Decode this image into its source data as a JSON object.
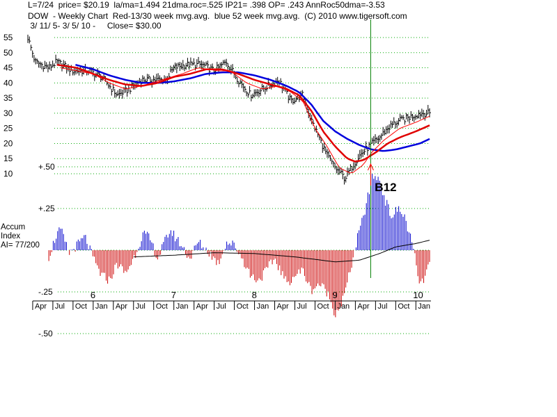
{
  "header": {
    "line1": "L=7/24  price= $20.19  la/ma=1.494 21dma.roc=.525 IP21= .398 OP= .243 AnnRoc50dma=-3.53",
    "line2": "DOW  - Weekly Chart  Red-13/30 week mvg.avg.  blue 52 week mvg.avg.  (C) 2010 www.tigersoft.com",
    "line3": " 3/ 11/ 5- 3/ 5/ 10 -     Close= $30.00"
  },
  "side_label": {
    "line1": "Accum",
    "line2": "Index",
    "line3": "AI= 77/200"
  },
  "signal_label": "B12",
  "colors": {
    "bars": "#000000",
    "ma13": "#ff0000",
    "ma30": "#e00000",
    "ma52": "#0000dd",
    "accum_pos": "#0000cc",
    "accum_neg": "#cc0000",
    "signal_line": "#008000",
    "grid": "#00aa00"
  },
  "chart_data": [
    {
      "type": "ohlc",
      "y_ticks": [
        10,
        15,
        20,
        25,
        30,
        35,
        40,
        45,
        50,
        55
      ],
      "ylim": [
        7,
        57
      ],
      "x_range": [
        2005.19,
        2010.17
      ],
      "grid": true,
      "year_labels": [
        {
          "x": 2006.0,
          "label": "6"
        },
        {
          "x": 2007.0,
          "label": "7"
        },
        {
          "x": 2008.0,
          "label": "8"
        },
        {
          "x": 2009.0,
          "label": "9"
        },
        {
          "x": 2010.0,
          "label": "10"
        }
      ],
      "month_ticks": [
        {
          "x": 2005.25,
          "label": "Apr"
        },
        {
          "x": 2005.5,
          "label": "Jul"
        },
        {
          "x": 2005.75,
          "label": "Oct"
        },
        {
          "x": 2006.0,
          "label": "Jan"
        },
        {
          "x": 2006.25,
          "label": "Apr"
        },
        {
          "x": 2006.5,
          "label": "Jul"
        },
        {
          "x": 2006.75,
          "label": "Oct"
        },
        {
          "x": 2007.0,
          "label": "Jan"
        },
        {
          "x": 2007.25,
          "label": "Apr"
        },
        {
          "x": 2007.5,
          "label": "Jul"
        },
        {
          "x": 2007.75,
          "label": "Oct"
        },
        {
          "x": 2008.0,
          "label": "Jan"
        },
        {
          "x": 2008.25,
          "label": "Apr"
        },
        {
          "x": 2008.5,
          "label": "Jul"
        },
        {
          "x": 2008.75,
          "label": "Oct"
        },
        {
          "x": 2009.0,
          "label": "Jan"
        },
        {
          "x": 2009.25,
          "label": "Apr"
        },
        {
          "x": 2009.5,
          "label": "Jul"
        },
        {
          "x": 2009.75,
          "label": "Oct"
        },
        {
          "x": 2010.0,
          "label": "Jan"
        }
      ],
      "price_anchors": [
        [
          2005.19,
          55
        ],
        [
          2005.28,
          47
        ],
        [
          2005.45,
          45
        ],
        [
          2005.55,
          47
        ],
        [
          2005.75,
          44
        ],
        [
          2005.95,
          44
        ],
        [
          2006.1,
          42
        ],
        [
          2006.3,
          36
        ],
        [
          2006.45,
          38
        ],
        [
          2006.6,
          41
        ],
        [
          2006.9,
          41
        ],
        [
          2007.0,
          45
        ],
        [
          2007.15,
          46
        ],
        [
          2007.35,
          46
        ],
        [
          2007.5,
          44
        ],
        [
          2007.65,
          47
        ],
        [
          2007.8,
          41
        ],
        [
          2007.95,
          36
        ],
        [
          2008.1,
          38
        ],
        [
          2008.3,
          41
        ],
        [
          2008.45,
          34
        ],
        [
          2008.6,
          36
        ],
        [
          2008.7,
          28
        ],
        [
          2008.8,
          22
        ],
        [
          2008.9,
          16
        ],
        [
          2009.0,
          12
        ],
        [
          2009.07,
          10
        ],
        [
          2009.12,
          8.5
        ],
        [
          2009.2,
          12
        ],
        [
          2009.3,
          16
        ],
        [
          2009.38,
          18
        ],
        [
          2009.46,
          20
        ],
        [
          2009.55,
          22
        ],
        [
          2009.65,
          25
        ],
        [
          2009.75,
          27
        ],
        [
          2009.85,
          28
        ],
        [
          2009.95,
          29
        ],
        [
          2010.05,
          30
        ],
        [
          2010.17,
          30
        ]
      ],
      "ma13_anchors": [
        [
          2005.6,
          45
        ],
        [
          2005.8,
          44
        ],
        [
          2006.0,
          43
        ],
        [
          2006.2,
          40
        ],
        [
          2006.4,
          38
        ],
        [
          2006.6,
          39
        ],
        [
          2006.85,
          41
        ],
        [
          2007.1,
          43
        ],
        [
          2007.3,
          45
        ],
        [
          2007.55,
          44
        ],
        [
          2007.7,
          44
        ],
        [
          2007.9,
          40
        ],
        [
          2008.1,
          38
        ],
        [
          2008.3,
          39
        ],
        [
          2008.45,
          37
        ],
        [
          2008.6,
          34
        ],
        [
          2008.75,
          25
        ],
        [
          2008.9,
          19
        ],
        [
          2009.05,
          12
        ],
        [
          2009.2,
          10
        ],
        [
          2009.35,
          13
        ],
        [
          2009.45,
          17
        ],
        [
          2009.6,
          21
        ],
        [
          2009.8,
          25
        ],
        [
          2010.0,
          27
        ],
        [
          2010.17,
          29
        ]
      ],
      "ma30_anchors": [
        [
          2005.55,
          46
        ],
        [
          2005.8,
          45
        ],
        [
          2006.0,
          43
        ],
        [
          2006.2,
          41
        ],
        [
          2006.4,
          39.5
        ],
        [
          2006.6,
          39
        ],
        [
          2006.8,
          40
        ],
        [
          2007.0,
          42
        ],
        [
          2007.2,
          43
        ],
        [
          2007.4,
          44.5
        ],
        [
          2007.6,
          44.5
        ],
        [
          2007.8,
          43
        ],
        [
          2008.0,
          41
        ],
        [
          2008.2,
          39.5
        ],
        [
          2008.4,
          38
        ],
        [
          2008.55,
          36
        ],
        [
          2008.7,
          31
        ],
        [
          2008.85,
          24
        ],
        [
          2009.0,
          19
        ],
        [
          2009.15,
          15
        ],
        [
          2009.25,
          14
        ],
        [
          2009.35,
          14.5
        ],
        [
          2009.5,
          17
        ],
        [
          2009.65,
          20
        ],
        [
          2009.8,
          22
        ],
        [
          2010.0,
          24
        ],
        [
          2010.17,
          26
        ]
      ],
      "ma52_anchors": [
        [
          2005.78,
          46
        ],
        [
          2006.0,
          44.5
        ],
        [
          2006.2,
          42.5
        ],
        [
          2006.4,
          41
        ],
        [
          2006.6,
          40
        ],
        [
          2006.8,
          40
        ],
        [
          2007.0,
          40.5
        ],
        [
          2007.2,
          41.5
        ],
        [
          2007.4,
          43
        ],
        [
          2007.6,
          43.5
        ],
        [
          2007.8,
          43.5
        ],
        [
          2008.0,
          42.5
        ],
        [
          2008.2,
          41
        ],
        [
          2008.4,
          39
        ],
        [
          2008.55,
          37
        ],
        [
          2008.7,
          33
        ],
        [
          2008.85,
          27.5
        ],
        [
          2009.0,
          24
        ],
        [
          2009.15,
          21.5
        ],
        [
          2009.3,
          19.5
        ],
        [
          2009.45,
          18
        ],
        [
          2009.6,
          17.5
        ],
        [
          2009.75,
          18
        ],
        [
          2009.9,
          19
        ],
        [
          2010.05,
          20
        ],
        [
          2010.17,
          21.5
        ]
      ],
      "signal": {
        "x": 2009.44,
        "label": "B12"
      }
    },
    {
      "type": "bar",
      "name": "Accum Index",
      "y_ticks": [
        {
          "value": 0.5,
          "label": "+.50"
        },
        {
          "value": 0.25,
          "label": "+.25"
        },
        {
          "value": -0.25,
          "label": "-.25"
        },
        {
          "value": -0.5,
          "label": "-.50"
        }
      ],
      "ylim": [
        -0.55,
        0.55
      ],
      "zero_line": true,
      "accum_anchors": [
        [
          2005.19,
          -0.06
        ],
        [
          2005.28,
          -0.1
        ],
        [
          2005.35,
          0.02
        ],
        [
          2005.42,
          -0.08
        ],
        [
          2005.55,
          0.1
        ],
        [
          2005.6,
          0.12
        ],
        [
          2005.7,
          -0.02
        ],
        [
          2005.8,
          0.03
        ],
        [
          2005.9,
          0.08
        ],
        [
          2006.0,
          -0.05
        ],
        [
          2006.1,
          -0.15
        ],
        [
          2006.2,
          -0.18
        ],
        [
          2006.3,
          -0.08
        ],
        [
          2006.4,
          -0.14
        ],
        [
          2006.5,
          -0.05
        ],
        [
          2006.62,
          0.1
        ],
        [
          2006.7,
          0.07
        ],
        [
          2006.8,
          -0.05
        ],
        [
          2006.95,
          0.12
        ],
        [
          2007.05,
          0.06
        ],
        [
          2007.2,
          -0.05
        ],
        [
          2007.3,
          0.05
        ],
        [
          2007.45,
          -0.02
        ],
        [
          2007.55,
          -0.08
        ],
        [
          2007.65,
          0.05
        ],
        [
          2007.75,
          0.03
        ],
        [
          2007.85,
          -0.05
        ],
        [
          2007.95,
          -0.15
        ],
        [
          2008.05,
          -0.18
        ],
        [
          2008.15,
          -0.12
        ],
        [
          2008.25,
          -0.05
        ],
        [
          2008.4,
          -0.2
        ],
        [
          2008.5,
          -0.15
        ],
        [
          2008.6,
          -0.12
        ],
        [
          2008.7,
          -0.24
        ],
        [
          2008.8,
          -0.2
        ],
        [
          2008.9,
          -0.25
        ],
        [
          2009.0,
          -0.38
        ],
        [
          2009.08,
          -0.32
        ],
        [
          2009.15,
          -0.2
        ],
        [
          2009.22,
          -0.05
        ],
        [
          2009.28,
          0.08
        ],
        [
          2009.35,
          0.2
        ],
        [
          2009.42,
          0.35
        ],
        [
          2009.47,
          0.45
        ],
        [
          2009.55,
          0.42
        ],
        [
          2009.62,
          0.3
        ],
        [
          2009.7,
          0.2
        ],
        [
          2009.78,
          0.25
        ],
        [
          2009.86,
          0.2
        ],
        [
          2009.93,
          0.08
        ],
        [
          2009.98,
          -0.02
        ],
        [
          2010.03,
          -0.18
        ],
        [
          2010.08,
          -0.2
        ],
        [
          2010.17,
          -0.08
        ]
      ],
      "ma_anchors": [
        [
          2006.5,
          -0.04
        ],
        [
          2007.0,
          -0.03
        ],
        [
          2007.5,
          -0.015
        ],
        [
          2008.0,
          -0.02
        ],
        [
          2008.5,
          -0.04
        ],
        [
          2009.0,
          -0.07
        ],
        [
          2009.3,
          -0.06
        ],
        [
          2009.55,
          -0.02
        ],
        [
          2009.75,
          0.02
        ],
        [
          2010.0,
          0.04
        ],
        [
          2010.17,
          0.06
        ]
      ]
    }
  ]
}
